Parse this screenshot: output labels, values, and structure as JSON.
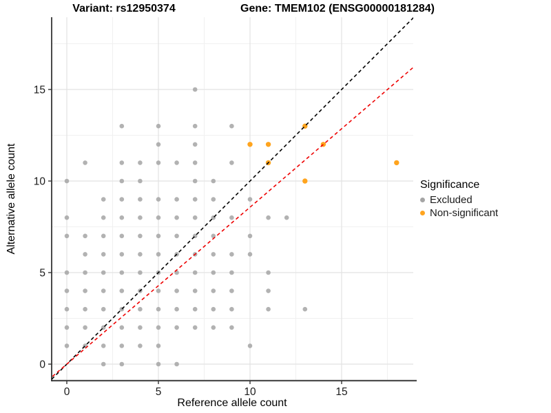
{
  "title": {
    "variant": "Variant: rs12950374",
    "gene": "Gene: TMEM102 (ENSG00000181284)"
  },
  "chart_data": {
    "type": "scatter",
    "xlabel": "Reference allele count",
    "ylabel": "Alternative allele count",
    "x_ticks": [
      0,
      5,
      10,
      15
    ],
    "y_ticks": [
      0,
      5,
      10,
      15
    ],
    "xlim": [
      -0.85,
      18.95
    ],
    "ylim": [
      -0.9,
      18.95
    ],
    "grid": "on",
    "grid_major_x": [
      0,
      5,
      10,
      15
    ],
    "grid_minor_x": [
      2.5,
      7.5,
      12.5,
      17.5
    ],
    "grid_major_y": [
      0,
      5,
      10,
      15
    ],
    "grid_minor_y": [
      2.5,
      7.5,
      12.5,
      17.5
    ],
    "series": [
      {
        "name": "Excluded",
        "color": "#A5A5A5",
        "points": [
          [
            7,
            15
          ],
          [
            3,
            13
          ],
          [
            5,
            13
          ],
          [
            7,
            13
          ],
          [
            9,
            13
          ],
          [
            5,
            12
          ],
          [
            7,
            12
          ],
          [
            1,
            11
          ],
          [
            3,
            11
          ],
          [
            4,
            11
          ],
          [
            5,
            11
          ],
          [
            6,
            11
          ],
          [
            7,
            11
          ],
          [
            9,
            11
          ],
          [
            0,
            10
          ],
          [
            3,
            10
          ],
          [
            4,
            10
          ],
          [
            7,
            10
          ],
          [
            8,
            10
          ],
          [
            2,
            9
          ],
          [
            3,
            9
          ],
          [
            4,
            9
          ],
          [
            5,
            9
          ],
          [
            6,
            9
          ],
          [
            7,
            9
          ],
          [
            8,
            9
          ],
          [
            10,
            9
          ],
          [
            0,
            8
          ],
          [
            2,
            8
          ],
          [
            3,
            8
          ],
          [
            4,
            8
          ],
          [
            5,
            8
          ],
          [
            6,
            8
          ],
          [
            7,
            8
          ],
          [
            8,
            8
          ],
          [
            9,
            8
          ],
          [
            11,
            8
          ],
          [
            12,
            8
          ],
          [
            0,
            7
          ],
          [
            1,
            7
          ],
          [
            2,
            7
          ],
          [
            3,
            7
          ],
          [
            4,
            7
          ],
          [
            5,
            7
          ],
          [
            6,
            7
          ],
          [
            7,
            7
          ],
          [
            8,
            7
          ],
          [
            10,
            7
          ],
          [
            1,
            6
          ],
          [
            2,
            6
          ],
          [
            3,
            6
          ],
          [
            4,
            6
          ],
          [
            5,
            6
          ],
          [
            6,
            6
          ],
          [
            7,
            6
          ],
          [
            8,
            6
          ],
          [
            9,
            6
          ],
          [
            10,
            6
          ],
          [
            0,
            5
          ],
          [
            1,
            5
          ],
          [
            2,
            5
          ],
          [
            3,
            5
          ],
          [
            4,
            5
          ],
          [
            5,
            5
          ],
          [
            6,
            5
          ],
          [
            7,
            5
          ],
          [
            8,
            5
          ],
          [
            9,
            5
          ],
          [
            11,
            5
          ],
          [
            0,
            4
          ],
          [
            1,
            4
          ],
          [
            2,
            4
          ],
          [
            3,
            4
          ],
          [
            4,
            4
          ],
          [
            5,
            4
          ],
          [
            6,
            4
          ],
          [
            7,
            4
          ],
          [
            8,
            4
          ],
          [
            9,
            4
          ],
          [
            11,
            4
          ],
          [
            0,
            3
          ],
          [
            1,
            3
          ],
          [
            2,
            3
          ],
          [
            3,
            3
          ],
          [
            4,
            3
          ],
          [
            5,
            3
          ],
          [
            6,
            3
          ],
          [
            7,
            3
          ],
          [
            8,
            3
          ],
          [
            9,
            3
          ],
          [
            11,
            3
          ],
          [
            13,
            3
          ],
          [
            0,
            2
          ],
          [
            1,
            2
          ],
          [
            2,
            2
          ],
          [
            3,
            2
          ],
          [
            4,
            2
          ],
          [
            5,
            2
          ],
          [
            6,
            2
          ],
          [
            7,
            2
          ],
          [
            8,
            2
          ],
          [
            9,
            2
          ],
          [
            0,
            1
          ],
          [
            1,
            1
          ],
          [
            2,
            1
          ],
          [
            3,
            1
          ],
          [
            4,
            1
          ],
          [
            5,
            1
          ],
          [
            10,
            1
          ],
          [
            2,
            0
          ],
          [
            3,
            0
          ],
          [
            5,
            0
          ],
          [
            6,
            0
          ]
        ]
      },
      {
        "name": "Non-significant",
        "color": "#FFA41E",
        "points": [
          [
            10,
            12
          ],
          [
            11,
            12
          ],
          [
            11,
            11
          ],
          [
            13,
            13
          ],
          [
            13,
            10
          ],
          [
            14,
            12
          ],
          [
            18,
            11
          ]
        ]
      }
    ],
    "lines": [
      {
        "name": "identity-line",
        "color": "#000000",
        "style": "dashed",
        "slope": 1.0,
        "intercept": 0
      },
      {
        "name": "expected-ratio-line",
        "color": "#EE0000",
        "style": "dashed",
        "slope": 0.857,
        "intercept": 0
      }
    ],
    "legend": {
      "title": "Significance",
      "position": "right",
      "entries": [
        {
          "label": "Excluded",
          "color": "#A5A5A5"
        },
        {
          "label": "Non-significant",
          "color": "#FFA41E"
        }
      ]
    }
  }
}
